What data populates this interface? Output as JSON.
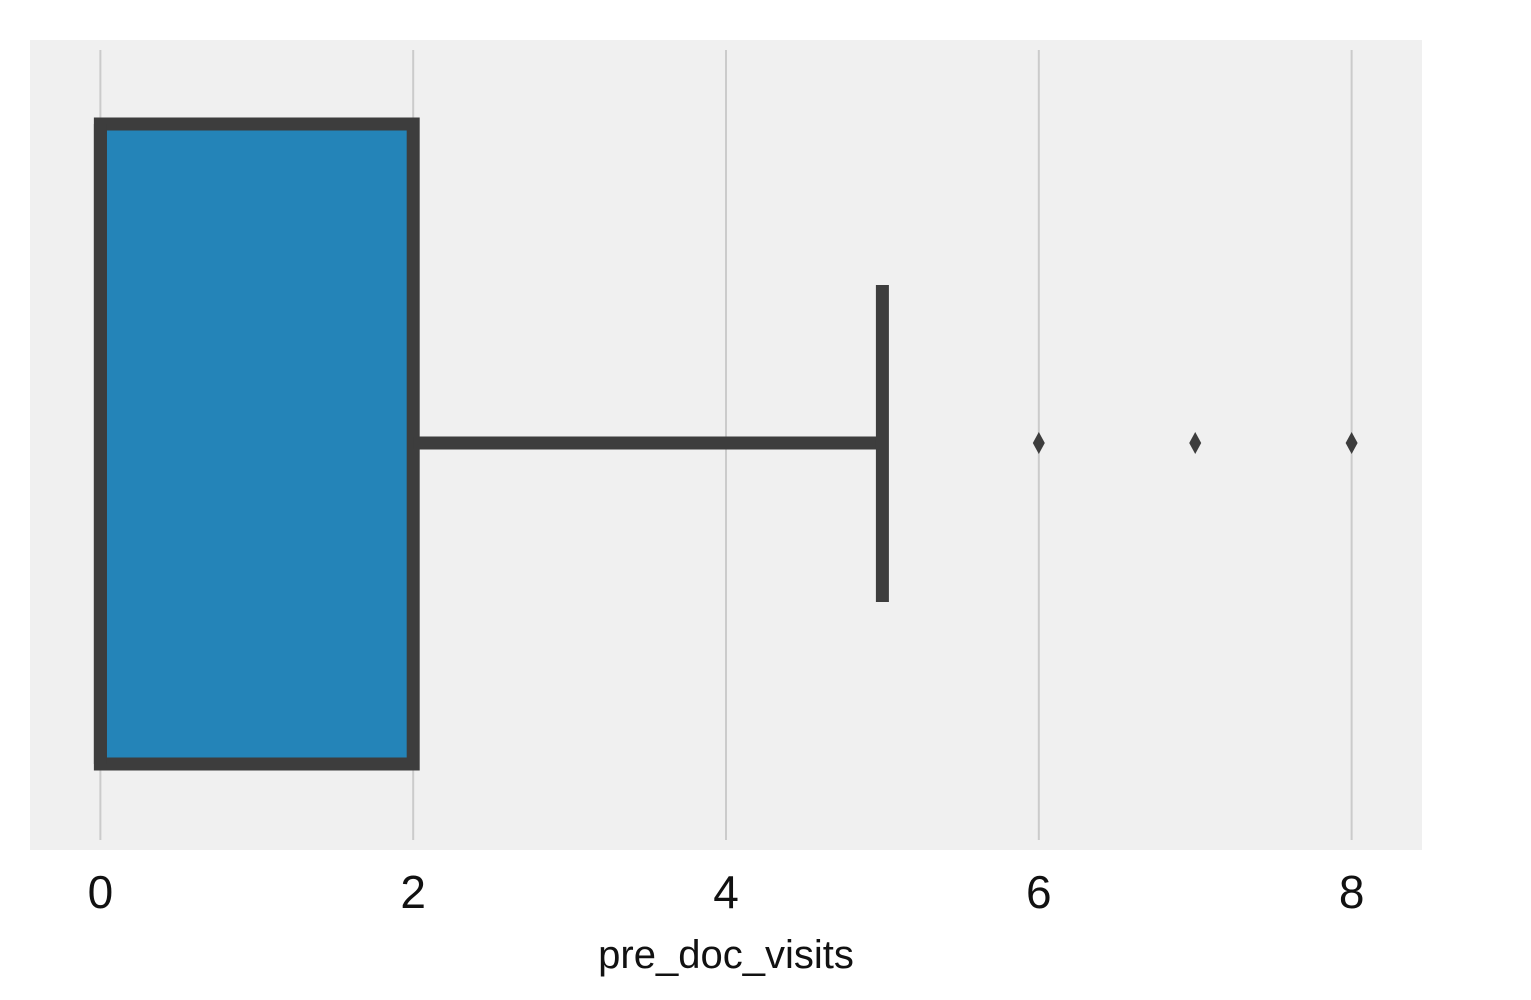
{
  "chart_data": {
    "type": "box",
    "orientation": "horizontal",
    "xlabel": "pre_doc_visits",
    "xlim": [
      -0.45,
      8.45
    ],
    "xticks": [
      0,
      2,
      4,
      6,
      8
    ],
    "xtick_labels": [
      "0",
      "2",
      "4",
      "6",
      "8"
    ],
    "grid": "vertical",
    "box": {
      "q1": 0,
      "median": 0,
      "q3": 2,
      "whisker_low": 0,
      "whisker_high": 5,
      "outliers": [
        6,
        7,
        8
      ]
    },
    "colors": {
      "box_fill": "#2484b8",
      "edge": "#3d3d3d",
      "plot_bg": "#f0f0f0",
      "grid": "#cbcbcb"
    }
  }
}
